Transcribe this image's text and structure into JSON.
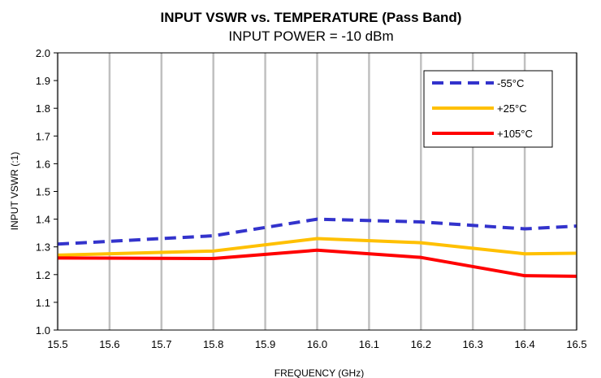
{
  "chart_data": {
    "type": "line",
    "title": "INPUT VSWR vs. TEMPERATURE (Pass Band)",
    "subtitle": "INPUT POWER = -10 dBm",
    "xlabel": "FREQUENCY  (GHz)",
    "ylabel": "INPUT VSWR (:1)",
    "xlim": [
      15.5,
      16.5
    ],
    "ylim": [
      1.0,
      2.0
    ],
    "x_ticks": [
      "15.5",
      "15.6",
      "15.7",
      "15.8",
      "15.9",
      "16.0",
      "16.1",
      "16.2",
      "16.3",
      "16.4",
      "16.5"
    ],
    "y_ticks": [
      "1.0",
      "1.1",
      "1.2",
      "1.3",
      "1.4",
      "1.5",
      "1.6",
      "1.7",
      "1.8",
      "1.9",
      "2.0"
    ],
    "grid": "vertical",
    "legend_position": "top-right",
    "series": [
      {
        "name": "-55°C",
        "color": "#3333cc",
        "style": "dashed",
        "x": [
          15.5,
          15.8,
          16.0,
          16.2,
          16.4,
          16.5
        ],
        "y": [
          1.31,
          1.34,
          1.4,
          1.39,
          1.365,
          1.375
        ]
      },
      {
        "name": "+25°C",
        "color": "#ffc000",
        "style": "solid",
        "x": [
          15.5,
          15.8,
          16.0,
          16.2,
          16.4,
          16.5
        ],
        "y": [
          1.27,
          1.285,
          1.33,
          1.315,
          1.275,
          1.277
        ]
      },
      {
        "name": "+105°C",
        "color": "#ff0000",
        "style": "solid",
        "x": [
          15.5,
          15.8,
          16.0,
          16.2,
          16.4,
          16.5
        ],
        "y": [
          1.26,
          1.258,
          1.288,
          1.262,
          1.196,
          1.194
        ]
      }
    ]
  }
}
